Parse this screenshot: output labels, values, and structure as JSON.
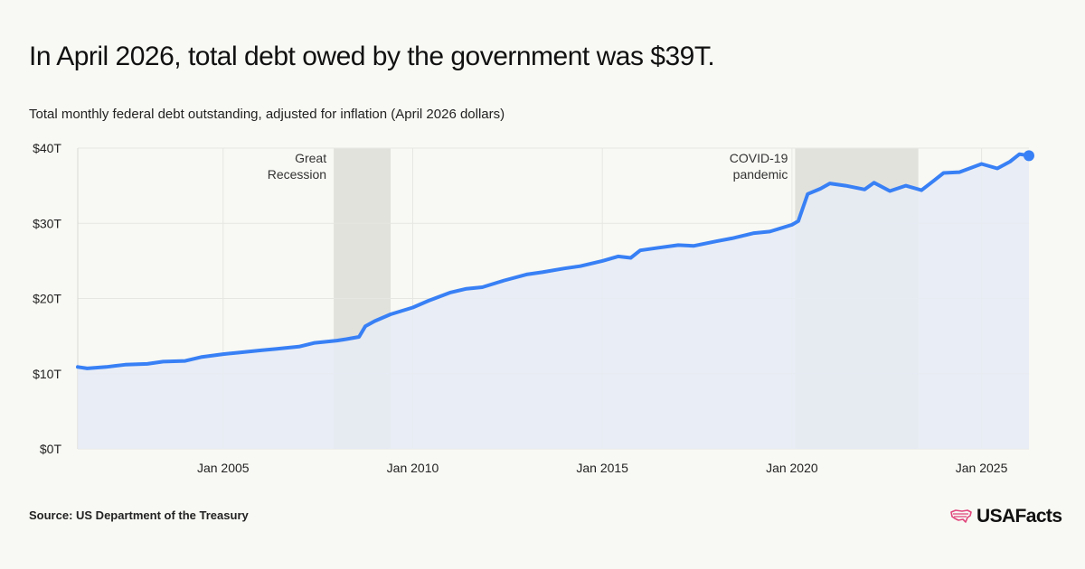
{
  "title": "In April 2026, total debt owed by the government was $39T.",
  "subtitle": "Total monthly federal debt outstanding, adjusted for inflation (April 2026 dollars)",
  "source": "Source: US Department of the Treasury",
  "brand": "USAFacts",
  "colors": {
    "line": "#3880f5",
    "area": "#e6ebf4",
    "recession": "#e2e2dd",
    "grid": "#e6e6e2",
    "brand_icon": "#e0457b"
  },
  "chart_data": {
    "type": "area",
    "title": "Total monthly federal debt outstanding, adjusted for inflation (April 2026 dollars)",
    "xlabel": "",
    "ylabel": "",
    "x_range": [
      "2001-03",
      "2026-04"
    ],
    "ylim": [
      0,
      40
    ],
    "y_unit": "trillion dollars (April 2026)",
    "y_ticks": [
      {
        "value": 0,
        "label": "$0T"
      },
      {
        "value": 10,
        "label": "$10T"
      },
      {
        "value": 20,
        "label": "$20T"
      },
      {
        "value": 30,
        "label": "$30T"
      },
      {
        "value": 40,
        "label": "$40T"
      }
    ],
    "x_ticks": [
      {
        "value": "2005-01",
        "label": "Jan 2005"
      },
      {
        "value": "2010-01",
        "label": "Jan 2010"
      },
      {
        "value": "2015-01",
        "label": "Jan 2015"
      },
      {
        "value": "2020-01",
        "label": "Jan 2020"
      },
      {
        "value": "2025-01",
        "label": "Jan 2025"
      }
    ],
    "grid": true,
    "shaded_periods": [
      {
        "label_lines": [
          "Great",
          "Recession"
        ],
        "start": "2007-12",
        "end": "2009-06"
      },
      {
        "label_lines": [
          "COVID-19",
          "pandemic"
        ],
        "start": "2020-02",
        "end": "2023-05"
      }
    ],
    "series": [
      {
        "points": [
          [
            "2001-03",
            10.9
          ],
          [
            "2001-06",
            10.7
          ],
          [
            "2001-12",
            10.9
          ],
          [
            "2002-06",
            11.2
          ],
          [
            "2003-01",
            11.3
          ],
          [
            "2003-06",
            11.6
          ],
          [
            "2004-01",
            11.7
          ],
          [
            "2004-06",
            12.2
          ],
          [
            "2005-01",
            12.6
          ],
          [
            "2005-06",
            12.8
          ],
          [
            "2006-01",
            13.1
          ],
          [
            "2006-06",
            13.3
          ],
          [
            "2007-01",
            13.6
          ],
          [
            "2007-06",
            14.1
          ],
          [
            "2008-01",
            14.4
          ],
          [
            "2008-04",
            14.6
          ],
          [
            "2008-08",
            14.9
          ],
          [
            "2008-10",
            16.3
          ],
          [
            "2009-01",
            17.0
          ],
          [
            "2009-06",
            17.9
          ],
          [
            "2010-01",
            18.8
          ],
          [
            "2010-06",
            19.7
          ],
          [
            "2011-01",
            20.8
          ],
          [
            "2011-06",
            21.3
          ],
          [
            "2011-11",
            21.5
          ],
          [
            "2012-06",
            22.4
          ],
          [
            "2013-01",
            23.2
          ],
          [
            "2013-06",
            23.5
          ],
          [
            "2014-01",
            24.0
          ],
          [
            "2014-06",
            24.3
          ],
          [
            "2015-01",
            25.0
          ],
          [
            "2015-06",
            25.6
          ],
          [
            "2015-10",
            25.4
          ],
          [
            "2016-01",
            26.4
          ],
          [
            "2016-06",
            26.7
          ],
          [
            "2017-01",
            27.1
          ],
          [
            "2017-06",
            27.0
          ],
          [
            "2018-01",
            27.6
          ],
          [
            "2018-06",
            28.0
          ],
          [
            "2019-01",
            28.7
          ],
          [
            "2019-06",
            28.9
          ],
          [
            "2020-01",
            29.8
          ],
          [
            "2020-03",
            30.3
          ],
          [
            "2020-06",
            33.9
          ],
          [
            "2020-10",
            34.6
          ],
          [
            "2021-01",
            35.3
          ],
          [
            "2021-06",
            35.0
          ],
          [
            "2021-12",
            34.5
          ],
          [
            "2022-03",
            35.4
          ],
          [
            "2022-08",
            34.3
          ],
          [
            "2023-01",
            35.0
          ],
          [
            "2023-06",
            34.4
          ],
          [
            "2023-10",
            35.7
          ],
          [
            "2024-01",
            36.7
          ],
          [
            "2024-06",
            36.8
          ],
          [
            "2025-01",
            37.9
          ],
          [
            "2025-06",
            37.3
          ],
          [
            "2025-10",
            38.2
          ],
          [
            "2026-01",
            39.2
          ],
          [
            "2026-04",
            39.0
          ]
        ]
      }
    ],
    "last_point_marker": true
  }
}
